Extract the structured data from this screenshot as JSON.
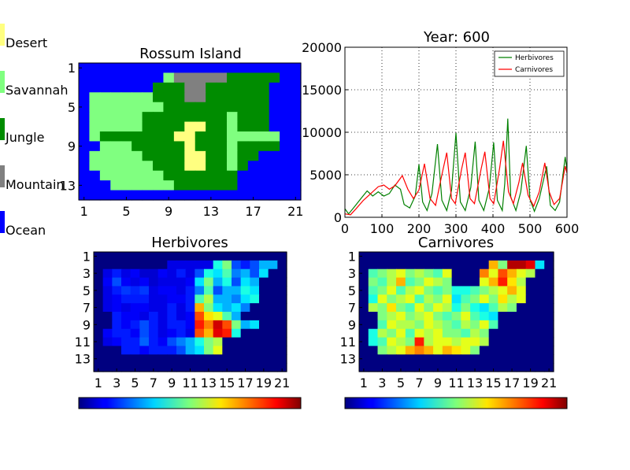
{
  "legend": {
    "items": [
      {
        "label": "Desert",
        "color": "#ffff80"
      },
      {
        "label": "Savannah",
        "color": "#80ff80"
      },
      {
        "label": "Jungle",
        "color": "#008c00"
      },
      {
        "label": "Mountain",
        "color": "#808080"
      },
      {
        "label": "Ocean",
        "color": "#0000ff"
      }
    ]
  },
  "chart_data": [
    {
      "type": "heatmap",
      "title": "Rossum Island",
      "xticks": [
        "1",
        "5",
        "9",
        "13",
        "17",
        "21"
      ],
      "yticks": [
        "1",
        "5",
        "9",
        "13"
      ],
      "rows": [
        "OOOOOOOOOOOOOOOOOOOOO",
        "OOOOOOOOSMMMMMJJJJJOO",
        "OOOOOOOJJJMMJJJJJJOOO",
        "OSSSSSSJJJMMJJJJJJOOO",
        "OSSSSSSSJJJJJJJJJJOOO",
        "OSSSSSJJJJJJJJSJJJOOO",
        "OSSSSSJJJJDDJJSJJJOOO",
        "OSJJJJJJJDDJJJSSSSSOO",
        "OOSSSJJJJJDJJJSJJJJOO",
        "OSSSSSJJJJDDJJSJJOOOO",
        "OSSSSSSJJJDDJJSJOOOOO",
        "OOSSSSSSJJJJJJJOOOOOO",
        "OOOSSSSSSJJJJJJOOOOOO",
        "OOOOOOOOOOOOOOOOOOOOO"
      ]
    },
    {
      "type": "line",
      "title": "Year:   600",
      "xlabel": "",
      "ylabel": "",
      "xlim": [
        0,
        600
      ],
      "ylim": [
        0,
        20000
      ],
      "xticks": [
        "0",
        "100",
        "200",
        "300",
        "400",
        "500",
        "600"
      ],
      "yticks": [
        "0",
        "5000",
        "10000",
        "15000",
        "20000"
      ],
      "grid": true,
      "legend_position": "top-right",
      "series": [
        {
          "name": "Herbivores",
          "color": "#008000",
          "points": [
            [
              0,
              1000
            ],
            [
              10,
              400
            ],
            [
              25,
              1200
            ],
            [
              45,
              2300
            ],
            [
              60,
              3100
            ],
            [
              75,
              2500
            ],
            [
              90,
              3000
            ],
            [
              105,
              2500
            ],
            [
              120,
              2800
            ],
            [
              135,
              3800
            ],
            [
              150,
              3300
            ],
            [
              160,
              1500
            ],
            [
              175,
              1100
            ],
            [
              190,
              2500
            ],
            [
              200,
              6200
            ],
            [
              210,
              1800
            ],
            [
              222,
              800
            ],
            [
              235,
              2800
            ],
            [
              250,
              8600
            ],
            [
              262,
              2000
            ],
            [
              275,
              800
            ],
            [
              288,
              3200
            ],
            [
              300,
              9900
            ],
            [
              312,
              1800
            ],
            [
              325,
              800
            ],
            [
              340,
              3500
            ],
            [
              352,
              8900
            ],
            [
              362,
              2000
            ],
            [
              375,
              800
            ],
            [
              390,
              3400
            ],
            [
              402,
              8800
            ],
            [
              412,
              2000
            ],
            [
              425,
              800
            ],
            [
              432,
              4000
            ],
            [
              440,
              11600
            ],
            [
              448,
              2400
            ],
            [
              462,
              800
            ],
            [
              475,
              3000
            ],
            [
              490,
              8400
            ],
            [
              500,
              2100
            ],
            [
              512,
              700
            ],
            [
              525,
              2200
            ],
            [
              545,
              6000
            ],
            [
              555,
              1400
            ],
            [
              568,
              800
            ],
            [
              580,
              1800
            ],
            [
              595,
              7100
            ],
            [
              600,
              5600
            ]
          ]
        },
        {
          "name": "Carnivores",
          "color": "#ff0000",
          "points": [
            [
              0,
              400
            ],
            [
              15,
              300
            ],
            [
              30,
              1000
            ],
            [
              50,
              2000
            ],
            [
              70,
              2800
            ],
            [
              90,
              3600
            ],
            [
              105,
              3800
            ],
            [
              120,
              3300
            ],
            [
              135,
              3700
            ],
            [
              155,
              4900
            ],
            [
              170,
              3300
            ],
            [
              185,
              2200
            ],
            [
              200,
              3200
            ],
            [
              215,
              6300
            ],
            [
              230,
              2200
            ],
            [
              245,
              1400
            ],
            [
              262,
              5000
            ],
            [
              275,
              7600
            ],
            [
              288,
              2200
            ],
            [
              298,
              1600
            ],
            [
              315,
              5600
            ],
            [
              325,
              7600
            ],
            [
              338,
              2200
            ],
            [
              350,
              1600
            ],
            [
              368,
              5700
            ],
            [
              378,
              7700
            ],
            [
              392,
              2200
            ],
            [
              402,
              1600
            ],
            [
              418,
              5800
            ],
            [
              428,
              9000
            ],
            [
              442,
              3000
            ],
            [
              455,
              1600
            ],
            [
              470,
              4100
            ],
            [
              480,
              6400
            ],
            [
              495,
              2600
            ],
            [
              510,
              1300
            ],
            [
              525,
              3000
            ],
            [
              540,
              6400
            ],
            [
              552,
              3000
            ],
            [
              565,
              1500
            ],
            [
              580,
              2200
            ],
            [
              595,
              6000
            ],
            [
              600,
              5200
            ]
          ]
        }
      ]
    },
    {
      "type": "heatmap",
      "title": "Herbivores",
      "colormap": "jet",
      "xticks": [
        "1",
        "3",
        "5",
        "7",
        "9",
        "11",
        "13",
        "15",
        "17",
        "19",
        "21"
      ],
      "yticks": [
        "1",
        "3",
        "5",
        "7",
        "9",
        "11",
        "13"
      ],
      "rows": [
        [
          0,
          0,
          0,
          0,
          0,
          0,
          0,
          0,
          0,
          0,
          0,
          0,
          0,
          0,
          0,
          0,
          0,
          0,
          0,
          0,
          0
        ],
        [
          0,
          0,
          0,
          0,
          0,
          0,
          0,
          0,
          0.1,
          0.1,
          0.1,
          0.1,
          0.1,
          0.4,
          0.5,
          0.2,
          0.15,
          0.2,
          0.3,
          0.3,
          0
        ],
        [
          0,
          0.1,
          0.15,
          0.1,
          0.12,
          0.08,
          0.08,
          0.12,
          0.1,
          0.15,
          0.1,
          0.2,
          0.4,
          0.35,
          0.45,
          0.25,
          0.3,
          0.2,
          0.35,
          0,
          0
        ],
        [
          0,
          0.12,
          0.2,
          0.12,
          0.1,
          0.12,
          0.08,
          0.1,
          0.1,
          0.1,
          0.12,
          0.35,
          0.5,
          0.3,
          0.4,
          0.2,
          0.35,
          0.3,
          0,
          0,
          0
        ],
        [
          0,
          0.1,
          0.15,
          0.18,
          0.16,
          0.18,
          0.1,
          0.12,
          0.12,
          0.1,
          0.15,
          0.25,
          0.45,
          0.2,
          0.3,
          0.3,
          0.4,
          0.35,
          0,
          0,
          0
        ],
        [
          0,
          0.1,
          0.12,
          0.15,
          0.15,
          0.15,
          0.1,
          0.1,
          0.12,
          0.12,
          0.15,
          0.45,
          0.55,
          0.3,
          0.3,
          0.25,
          0.35,
          0.4,
          0,
          0,
          0
        ],
        [
          0,
          0.1,
          0.12,
          0.1,
          0.12,
          0.12,
          0.1,
          0.1,
          0.15,
          0.1,
          0.15,
          0.7,
          0.5,
          0.35,
          0.3,
          0.35,
          0.25,
          0,
          0,
          0,
          0
        ],
        [
          0,
          0,
          0.15,
          0.12,
          0.12,
          0.1,
          0.15,
          0.1,
          0.15,
          0.1,
          0.12,
          0.8,
          0.65,
          0.6,
          0.45,
          0.3,
          0,
          0,
          0,
          0,
          0
        ],
        [
          0,
          0,
          0.15,
          0.12,
          0.15,
          0.2,
          0.15,
          0.1,
          0.15,
          0.15,
          0.12,
          0.85,
          0.75,
          0.92,
          0.8,
          0.5,
          0.3,
          0.35,
          0,
          0,
          0
        ],
        [
          0,
          0.12,
          0.15,
          0.15,
          0.12,
          0.2,
          0.15,
          0.1,
          0.12,
          0.15,
          0.1,
          0.8,
          0.7,
          0.9,
          0.85,
          0.4,
          0,
          0,
          0,
          0,
          0
        ],
        [
          0,
          0.1,
          0.12,
          0.15,
          0.15,
          0.22,
          0.15,
          0.12,
          0.2,
          0.25,
          0.3,
          0.4,
          0.5,
          0.55,
          0,
          0,
          0,
          0,
          0,
          0,
          0
        ],
        [
          0,
          0,
          0,
          0.15,
          0.15,
          0.12,
          0.15,
          0.15,
          0.15,
          0.2,
          0.3,
          0.35,
          0.5,
          0.6,
          0,
          0,
          0,
          0,
          0,
          0,
          0
        ],
        [
          0,
          0,
          0,
          0,
          0,
          0,
          0,
          0,
          0,
          0,
          0,
          0,
          0,
          0,
          0,
          0,
          0,
          0,
          0,
          0,
          0
        ],
        [
          0,
          0,
          0,
          0,
          0,
          0,
          0,
          0,
          0,
          0,
          0,
          0,
          0,
          0,
          0,
          0,
          0,
          0,
          0,
          0,
          0
        ]
      ]
    },
    {
      "type": "heatmap",
      "title": "Carnivores",
      "colormap": "jet",
      "xticks": [
        "1",
        "3",
        "5",
        "7",
        "9",
        "11",
        "13",
        "15",
        "17",
        "19",
        "21"
      ],
      "yticks": [
        "1",
        "3",
        "5",
        "7",
        "9",
        "11",
        "13"
      ],
      "rows": [
        [
          0,
          0,
          0,
          0,
          0,
          0,
          0,
          0,
          0,
          0,
          0,
          0,
          0,
          0,
          0,
          0,
          0,
          0,
          0,
          0,
          0
        ],
        [
          0,
          0,
          0,
          0,
          0,
          0,
          0,
          0,
          0,
          0,
          0,
          0,
          0,
          0,
          0.7,
          0.5,
          0.95,
          0.95,
          0.9,
          0.35,
          0
        ],
        [
          0,
          0.45,
          0.5,
          0.55,
          0.6,
          0.5,
          0.55,
          0.5,
          0.45,
          0.6,
          0,
          0,
          0,
          0.75,
          0.6,
          0.8,
          0.7,
          0.6,
          0.55,
          0,
          0
        ],
        [
          0,
          0.5,
          0.45,
          0.55,
          0.7,
          0.45,
          0.5,
          0.6,
          0.55,
          0.5,
          0,
          0,
          0,
          0.6,
          0.7,
          0.85,
          0.65,
          0.55,
          0,
          0,
          0
        ],
        [
          0,
          0.45,
          0.5,
          0.6,
          0.45,
          0.55,
          0.6,
          0.5,
          0.45,
          0.5,
          0.4,
          0.4,
          0.45,
          0.5,
          0.55,
          0.6,
          0.7,
          0.6,
          0,
          0,
          0
        ],
        [
          0,
          0.4,
          0.6,
          0.5,
          0.55,
          0.6,
          0.45,
          0.55,
          0.5,
          0.6,
          0.35,
          0.45,
          0.5,
          0.6,
          0.5,
          0.65,
          0.55,
          0.6,
          0,
          0,
          0
        ],
        [
          0,
          0.55,
          0.5,
          0.65,
          0.5,
          0.45,
          0.6,
          0.5,
          0.6,
          0.55,
          0.4,
          0.5,
          0.4,
          0.35,
          0.45,
          0.55,
          0.5,
          0,
          0,
          0,
          0
        ],
        [
          0,
          0,
          0.5,
          0.55,
          0.6,
          0.5,
          0.55,
          0.6,
          0.5,
          0.45,
          0.5,
          0.6,
          0.45,
          0.4,
          0.35,
          0,
          0,
          0,
          0,
          0,
          0
        ],
        [
          0,
          0,
          0.45,
          0.6,
          0.55,
          0.55,
          0.5,
          0.6,
          0.55,
          0.5,
          0.45,
          0.55,
          0.5,
          0.6,
          0.45,
          0,
          0,
          0,
          0,
          0,
          0
        ],
        [
          0,
          0.4,
          0.55,
          0.5,
          0.6,
          0.45,
          0.6,
          0.55,
          0.6,
          0.5,
          0.5,
          0.45,
          0.55,
          0.5,
          0,
          0,
          0,
          0,
          0,
          0,
          0
        ],
        [
          0,
          0.4,
          0.45,
          0.6,
          0.55,
          0.5,
          0.85,
          0.55,
          0.6,
          0.6,
          0.55,
          0.6,
          0.6,
          0.55,
          0,
          0,
          0,
          0,
          0,
          0,
          0
        ],
        [
          0,
          0,
          0.5,
          0.55,
          0.6,
          0.7,
          0.75,
          0.7,
          0.6,
          0.7,
          0.65,
          0.6,
          0.5,
          0,
          0,
          0,
          0,
          0,
          0,
          0,
          0
        ],
        [
          0,
          0,
          0,
          0,
          0,
          0,
          0,
          0,
          0,
          0,
          0,
          0,
          0,
          0,
          0,
          0,
          0,
          0,
          0,
          0,
          0
        ],
        [
          0,
          0,
          0,
          0,
          0,
          0,
          0,
          0,
          0,
          0,
          0,
          0,
          0,
          0,
          0,
          0,
          0,
          0,
          0,
          0,
          0
        ]
      ]
    }
  ]
}
